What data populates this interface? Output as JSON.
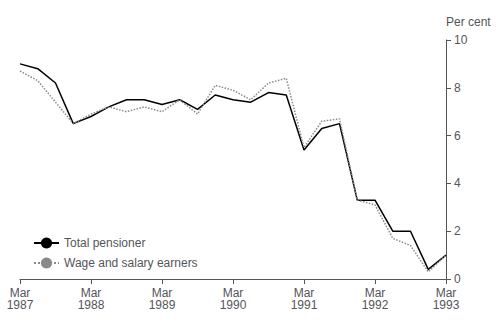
{
  "chart_data": {
    "type": "line",
    "ylabel": "Per cent",
    "categories": [
      "Mar\n1987",
      null,
      null,
      null,
      "Mar\n1988",
      null,
      null,
      null,
      "Mar\n1989",
      null,
      null,
      null,
      "Mar\n1990",
      null,
      null,
      null,
      "Mar\n1991",
      null,
      null,
      null,
      "Mar\n1992",
      null,
      null,
      null,
      "Mar\n1993"
    ],
    "series": [
      {
        "name": "Total pensioner",
        "color": "#000000",
        "line_style": "solid",
        "values": [
          9.0,
          8.8,
          8.2,
          6.5,
          6.8,
          7.2,
          7.5,
          7.5,
          7.3,
          7.5,
          7.1,
          7.7,
          7.5,
          7.4,
          7.8,
          7.7,
          5.4,
          6.3,
          6.5,
          3.3,
          3.3,
          2.0,
          2.0,
          0.4,
          1.0
        ]
      },
      {
        "name": "Wage and salary earners",
        "color": "#888888",
        "line_style": "dotted",
        "values": [
          8.7,
          8.3,
          7.4,
          6.5,
          6.9,
          7.2,
          7.0,
          7.2,
          7.0,
          7.5,
          6.9,
          8.1,
          7.9,
          7.5,
          8.2,
          8.4,
          5.5,
          6.6,
          6.7,
          3.3,
          3.1,
          1.7,
          1.4,
          0.3,
          1.0
        ]
      }
    ],
    "ylim": [
      0,
      10
    ],
    "yticks": [
      0,
      2,
      4,
      6,
      8,
      10
    ],
    "grid": false,
    "legend": "lower left"
  }
}
